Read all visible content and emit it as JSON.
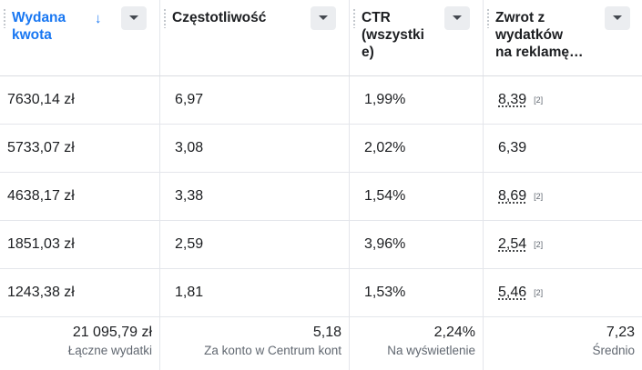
{
  "columns": [
    {
      "id": "spend",
      "title": "Wydana\nkwota",
      "sorted": true,
      "sort_direction": "descending"
    },
    {
      "id": "frequency",
      "title": "Częstotliwość",
      "sorted": false
    },
    {
      "id": "ctr",
      "title": "CTR\n(wszystki\ne)",
      "sorted": false
    },
    {
      "id": "roas",
      "title": "Zwrot z\nwydatków\nna reklamę…",
      "sorted": false
    }
  ],
  "rows": [
    {
      "spend": "7630,14 zł",
      "frequency": "6,97",
      "ctr": "1,99%",
      "roas": "8,39",
      "roas_note": "[2]"
    },
    {
      "spend": "5733,07 zł",
      "frequency": "3,08",
      "ctr": "2,02%",
      "roas": "6,39",
      "roas_note": ""
    },
    {
      "spend": "4638,17 zł",
      "frequency": "3,38",
      "ctr": "1,54%",
      "roas": "8,69",
      "roas_note": "[2]"
    },
    {
      "spend": "1851,03 zł",
      "frequency": "2,59",
      "ctr": "3,96%",
      "roas": "2,54",
      "roas_note": "[2]"
    },
    {
      "spend": "1243,38 zł",
      "frequency": "1,81",
      "ctr": "1,53%",
      "roas": "5,46",
      "roas_note": "[2]"
    }
  ],
  "totals": {
    "spend": {
      "value": "21 095,79 zł",
      "label": "Łączne wydatki"
    },
    "frequency": {
      "value": "5,18",
      "label": "Za konto w Centrum kont"
    },
    "ctr": {
      "value": "2,24%",
      "label": "Na wyświetlenie"
    },
    "roas": {
      "value": "7,23",
      "label": "Średnio"
    }
  },
  "colors": {
    "accent": "#1877f2",
    "text": "#1c1e21",
    "muted": "#606770",
    "border": "#e4e6eb"
  },
  "icons": {
    "sort": "arrow-down-icon",
    "dropdown": "caret-down-icon",
    "drag": "drag-handle-icon"
  }
}
